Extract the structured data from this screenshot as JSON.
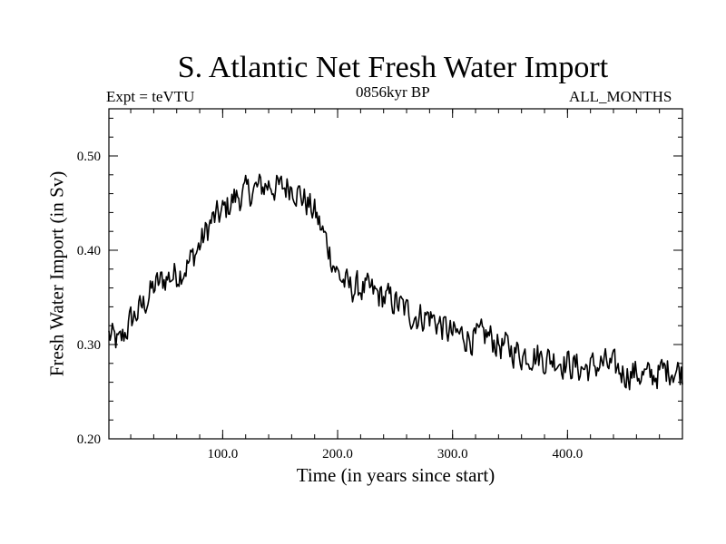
{
  "chart_data": {
    "type": "line",
    "title": "S. Atlantic Net Fresh Water Import",
    "subtitle_left": "Expt = teVTU",
    "subtitle_center": "0856kyr BP",
    "subtitle_right": "ALL_MONTHS",
    "xlabel": "Time (in years since start)",
    "ylabel": "Fresh Water Import (in Sv)",
    "xlim": [
      1,
      500
    ],
    "ylim": [
      0.2,
      0.55
    ],
    "xticks": [
      100,
      200,
      300,
      400
    ],
    "xtick_labels": [
      "100.0",
      "200.0",
      "300.0",
      "400.0"
    ],
    "yticks": [
      0.2,
      0.3,
      0.4,
      0.5
    ],
    "ytick_labels": [
      "0.20",
      "0.30",
      "0.40",
      "0.50"
    ],
    "grid": false,
    "series": [
      {
        "name": "Fresh Water Import",
        "color": "#000000",
        "x": [
          1,
          10,
          20,
          30,
          40,
          50,
          60,
          70,
          80,
          90,
          100,
          110,
          120,
          130,
          140,
          150,
          160,
          170,
          180,
          190,
          200,
          210,
          220,
          230,
          240,
          250,
          260,
          270,
          280,
          290,
          300,
          310,
          320,
          330,
          340,
          350,
          360,
          370,
          380,
          390,
          400,
          410,
          420,
          430,
          440,
          450,
          460,
          470,
          480,
          490,
          500
        ],
        "values": [
          0.31,
          0.3,
          0.325,
          0.34,
          0.36,
          0.37,
          0.375,
          0.385,
          0.405,
          0.43,
          0.44,
          0.455,
          0.46,
          0.465,
          0.47,
          0.465,
          0.47,
          0.455,
          0.44,
          0.41,
          0.375,
          0.36,
          0.36,
          0.355,
          0.35,
          0.345,
          0.335,
          0.33,
          0.33,
          0.32,
          0.31,
          0.31,
          0.305,
          0.31,
          0.3,
          0.295,
          0.29,
          0.29,
          0.285,
          0.285,
          0.28,
          0.275,
          0.275,
          0.28,
          0.275,
          0.27,
          0.27,
          0.265,
          0.27,
          0.275,
          0.27
        ]
      }
    ]
  }
}
